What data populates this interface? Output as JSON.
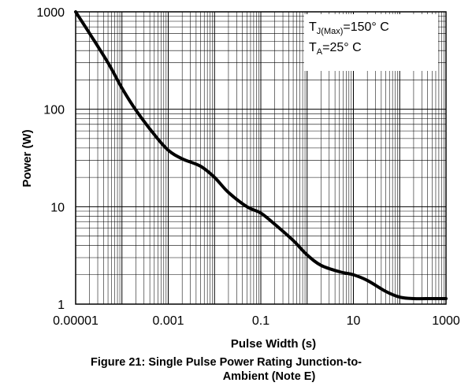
{
  "chart_data": {
    "type": "line",
    "x_scale": "log",
    "y_scale": "log",
    "xlim": [
      1e-05,
      1000
    ],
    "ylim": [
      1,
      1000
    ],
    "xticks": [
      "0.00001",
      "0.001",
      "0.1",
      "10",
      "1000"
    ],
    "yticks": [
      "1",
      "10",
      "100",
      "1000"
    ],
    "xlabel": "Pulse Width (s)",
    "ylabel": "Power (W)",
    "grid": true,
    "annotations": {
      "tj_base": "T",
      "tj_sub": "J(Max)",
      "tj_value": "=150° C",
      "ta_base": "T",
      "ta_sub": "A",
      "ta_value": "=25° C"
    },
    "caption": {
      "line1": "Figure 21: Single Pulse Power Rating Junction-to-",
      "line2": "Ambient (Note E)"
    },
    "series": [
      {
        "x": [
          1e-05,
          2e-05,
          5e-05,
          0.0001,
          0.0002,
          0.0005,
          0.001,
          0.002,
          0.005,
          0.01,
          0.02,
          0.05,
          0.1,
          0.2,
          0.5,
          1,
          2,
          5,
          10,
          20,
          50,
          100,
          200,
          500,
          1000
        ],
        "y": [
          1000,
          600,
          300,
          165,
          98,
          55,
          38,
          31,
          26,
          20,
          14,
          10,
          8.6,
          6.6,
          4.5,
          3.2,
          2.5,
          2.15,
          2.0,
          1.75,
          1.35,
          1.18,
          1.14,
          1.14,
          1.14
        ]
      }
    ]
  }
}
